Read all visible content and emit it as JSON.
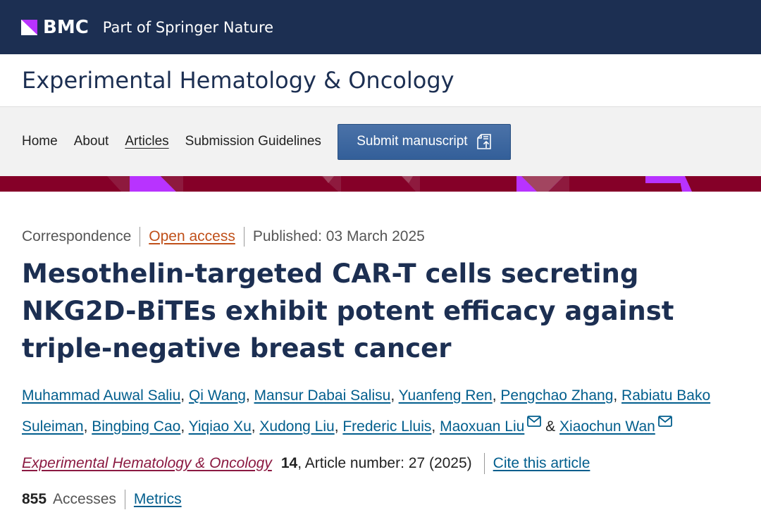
{
  "header": {
    "logo": "BMC",
    "tagline": "Part of Springer Nature"
  },
  "journal": {
    "title": "Experimental Hematology & Oncology"
  },
  "nav": {
    "items": [
      {
        "label": "Home"
      },
      {
        "label": "About"
      },
      {
        "label": "Articles",
        "active": true
      },
      {
        "label": "Submission Guidelines"
      }
    ],
    "submit_label": "Submit manuscript"
  },
  "colors": {
    "brand_navy": "#1c2f52",
    "band_red": "#850028",
    "band_purple": "#b833ff",
    "link_blue": "#025e8d",
    "open_access": "#c0501a"
  },
  "article": {
    "type": "Correspondence",
    "access": "Open access",
    "published": "Published: 03 March 2025",
    "title": "Mesothelin-targeted CAR-T cells secreting NKG2D-BiTEs exhibit potent efficacy against triple-negative breast cancer",
    "authors": [
      "Muhammad Auwal Saliu",
      "Qi Wang",
      "Mansur Dabai Salisu",
      "Yuanfeng Ren",
      "Pengchao Zhang",
      "Rabiatu Bako Suleiman",
      "Bingbing Cao",
      "Yiqiao Xu",
      "Xudong Liu",
      "Frederic Lluis",
      "Maoxuan Liu",
      "Xiaochun Wan"
    ],
    "author_sep": ", ",
    "amp": " & ",
    "journal_link": "Experimental Hematology & Oncology",
    "volume": "14",
    "article_number": ", Article number: 27 (2025)",
    "cite_label": "Cite this article",
    "accesses_count": "855",
    "accesses_label": "Accesses",
    "metrics_label": "Metrics"
  }
}
